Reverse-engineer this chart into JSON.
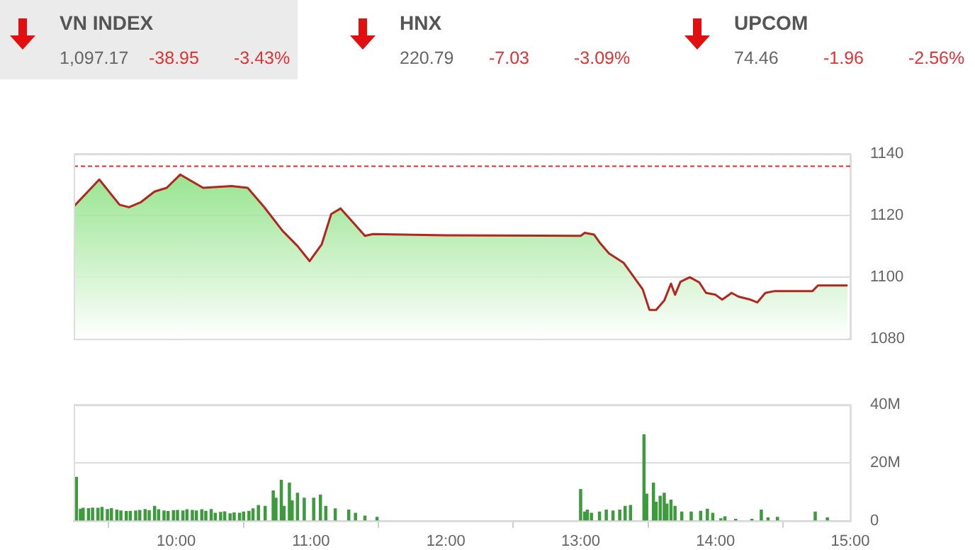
{
  "chart_data": [
    {
      "type": "other",
      "annotations": [
        "VN INDEX",
        "1,097.17",
        "-38.95",
        "-3.43%",
        "HNX",
        "220.79",
        "-7.03",
        "-3.09%",
        "UPCOM",
        "74.46",
        "-1.96",
        "-2.56%"
      ]
    },
    {
      "type": "area",
      "color": "#b3261e",
      "x": [
        9.24,
        9.43,
        9.58,
        9.65,
        9.74,
        9.84,
        9.93,
        10.03,
        10.2,
        10.41,
        10.53,
        10.65,
        10.79,
        10.9,
        10.99,
        11.08,
        11.15,
        11.22,
        11.32,
        11.4,
        11.46,
        12.0,
        13.0,
        13.03,
        13.1,
        13.14,
        13.21,
        13.32,
        13.46,
        13.51,
        13.56,
        13.62,
        13.67,
        13.7,
        13.74,
        13.81,
        13.88,
        13.93,
        14.0,
        14.05,
        14.12,
        14.17,
        14.26,
        14.31,
        14.37,
        14.44,
        14.72,
        14.76,
        14.98
      ],
      "values": [
        1122.9,
        1131.7,
        1123.5,
        1122.7,
        1124.4,
        1127.8,
        1129,
        1133.3,
        1129,
        1129.6,
        1129,
        1122.9,
        1115,
        1110.1,
        1105.2,
        1110.7,
        1120.5,
        1122.3,
        1117.4,
        1113.4,
        1114,
        1113.6,
        1113.4,
        1114.4,
        1113.8,
        1111.3,
        1107.7,
        1104.6,
        1096.1,
        1089.4,
        1089.4,
        1092.4,
        1097.9,
        1094.3,
        1098.5,
        1100,
        1098.3,
        1094.9,
        1094.3,
        1092.7,
        1094.9,
        1093.7,
        1092.7,
        1091.8,
        1094.9,
        1095.5,
        1095.5,
        1097.3,
        1097.3
      ],
      "xlim": [
        9.24,
        15
      ],
      "ylim": [
        1080,
        1140
      ],
      "yticks": [
        1080,
        1100,
        1120,
        1140
      ],
      "grid": "y",
      "tick_labels": "y",
      "legend": false,
      "ref_lines": [
        {
          "axis": "y",
          "value": 1136,
          "color": "#e03030",
          "line_style": "dashed"
        }
      ]
    },
    {
      "type": "bar",
      "color": "#3d9a3d",
      "x": [
        9.26,
        9.29,
        9.31,
        9.35,
        9.38,
        9.42,
        9.45,
        9.49,
        9.52,
        9.56,
        9.59,
        9.63,
        9.66,
        9.7,
        9.73,
        9.77,
        9.8,
        9.84,
        9.87,
        9.91,
        9.94,
        9.98,
        10.01,
        10.05,
        10.08,
        10.12,
        10.15,
        10.19,
        10.22,
        10.26,
        10.29,
        10.33,
        10.36,
        10.4,
        10.43,
        10.47,
        10.5,
        10.54,
        10.57,
        10.61,
        10.66,
        10.72,
        10.74,
        10.78,
        10.8,
        10.84,
        10.86,
        10.9,
        10.95,
        11.02,
        11.07,
        11.11,
        11.18,
        11.28,
        11.33,
        11.4,
        11.49,
        13.0,
        13.03,
        13.05,
        13.08,
        13.14,
        13.19,
        13.24,
        13.29,
        13.33,
        13.37,
        13.47,
        13.49,
        13.54,
        13.56,
        13.59,
        13.62,
        13.64,
        13.67,
        13.7,
        13.75,
        13.82,
        13.89,
        13.94,
        13.98,
        14.04,
        14.07,
        14.15,
        14.27,
        14.34,
        14.39,
        14.46,
        14.74,
        14.83
      ],
      "values": [
        15,
        4,
        4.3,
        4.2,
        4.4,
        4.3,
        4.6,
        3.9,
        4.2,
        3.7,
        3.4,
        3.2,
        3.3,
        3.4,
        3.6,
        3.9,
        3.5,
        5,
        3.8,
        3.4,
        3.2,
        3.5,
        3.6,
        3.4,
        3.8,
        3.6,
        3.4,
        3.8,
        3.3,
        3.9,
        2.6,
        2.9,
        3.1,
        2.4,
        2.7,
        2.6,
        3,
        3.3,
        4.1,
        5.3,
        5,
        10.3,
        7.8,
        14,
        5,
        13,
        6.9,
        9.5,
        7.8,
        7.8,
        8.9,
        5,
        4.1,
        3.7,
        2.6,
        1.6,
        1.2,
        10.8,
        3,
        3.7,
        2.6,
        3,
        3.7,
        3.4,
        3.7,
        5,
        5.3,
        29.7,
        9.2,
        13,
        6.4,
        8.5,
        9.5,
        5.8,
        7.1,
        5,
        3,
        3,
        3.3,
        4,
        2.6,
        0.7,
        1.4,
        0.5,
        0.5,
        3.7,
        1,
        1.2,
        3,
        1
      ],
      "xlim": [
        9.24,
        15
      ],
      "xticks": [
        {
          "value": 10,
          "label": "10:00"
        },
        {
          "value": 11,
          "label": "11:00"
        },
        {
          "value": 12,
          "label": "12:00"
        },
        {
          "value": 13,
          "label": "13:00"
        },
        {
          "value": 14,
          "label": "14:00"
        },
        {
          "value": 15,
          "label": "15:00"
        }
      ],
      "ylim": [
        0,
        40
      ],
      "yticks": [
        {
          "value": 0,
          "label": "0"
        },
        {
          "value": 20,
          "label": "20M"
        },
        {
          "value": 40,
          "label": "40M"
        }
      ],
      "grid": "y",
      "legend": false
    }
  ]
}
